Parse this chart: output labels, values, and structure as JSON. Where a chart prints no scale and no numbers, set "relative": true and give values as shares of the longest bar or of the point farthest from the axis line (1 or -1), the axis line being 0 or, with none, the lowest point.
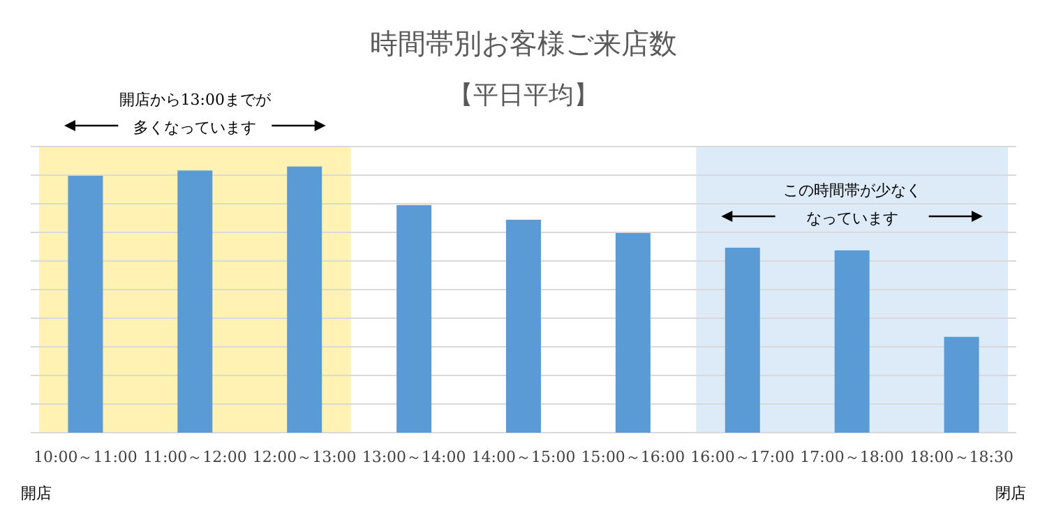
{
  "chart_data": {
    "type": "bar",
    "title": "時間帯別お客様ご来店数",
    "subtitle": "【平日平均】",
    "categories": [
      "10:00～11:00",
      "11:00～12:00",
      "12:00～13:00",
      "13:00～14:00",
      "14:00～15:00",
      "15:00～16:00",
      "16:00～17:00",
      "17:00～18:00",
      "18:00～18:30"
    ],
    "values": [
      0.965,
      0.985,
      1,
      0.855,
      0.8,
      0.75,
      0.695,
      0.685,
      0.36
    ],
    "color": "#5b9bd5",
    "relative": true,
    "grid": "y",
    "bands": [
      {
        "axis": "x",
        "from": "10:00～11:00",
        "to": "12:00～13:00",
        "color": "#fff2b3"
      },
      {
        "axis": "x",
        "from": "16:00～17:00",
        "to": "18:00～18:30",
        "color": "#ddebf8"
      }
    ],
    "annotations": [
      "開店から13:00までが",
      "多くなっています",
      "この時間帯が少なく",
      "なっています",
      "開店",
      "閉店"
    ]
  }
}
